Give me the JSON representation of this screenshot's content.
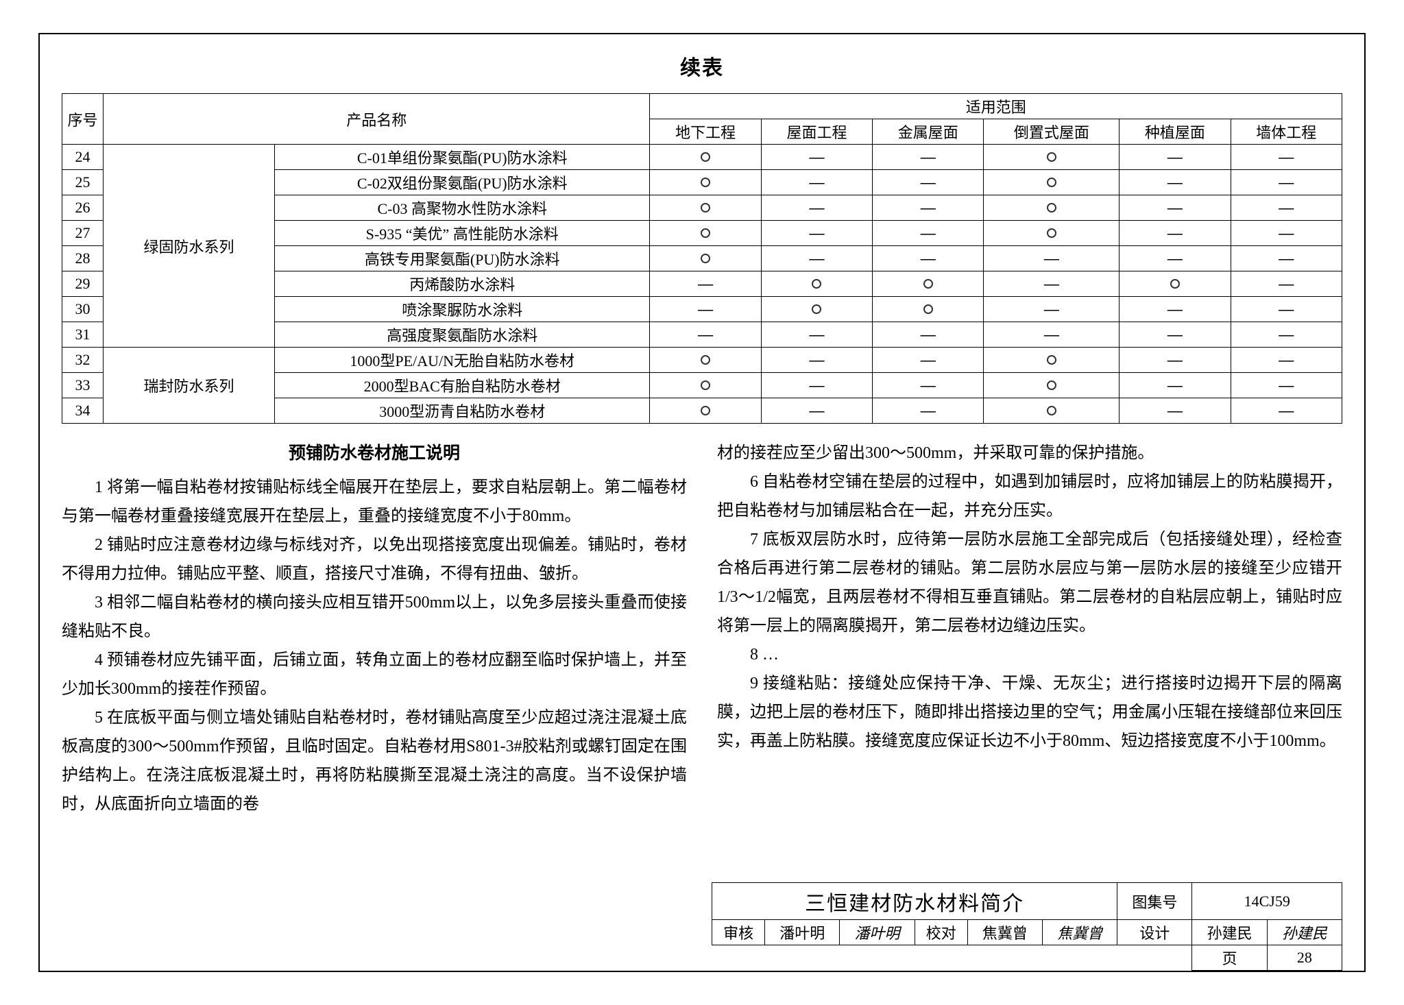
{
  "continued_label": "续表",
  "headers": {
    "num": "序号",
    "product_name": "产品名称",
    "scope": "适用范围",
    "cols": [
      "地下工程",
      "屋面工程",
      "金属屋面",
      "倒置式屋面",
      "种植屋面",
      "墙体工程"
    ]
  },
  "series_labels": {
    "lvgu": "绿固防水系列",
    "ruifeng": "瑞封防水系列"
  },
  "rows": [
    {
      "n": "24",
      "name": "C-01单组份聚氨酯(PU)防水涂料",
      "marks": [
        "o",
        "-",
        "-",
        "o",
        "-",
        "-"
      ]
    },
    {
      "n": "25",
      "name": "C-02双组份聚氨酯(PU)防水涂料",
      "marks": [
        "o",
        "-",
        "-",
        "o",
        "-",
        "-"
      ]
    },
    {
      "n": "26",
      "name": "C-03 高聚物水性防水涂料",
      "marks": [
        "o",
        "-",
        "-",
        "o",
        "-",
        "-"
      ]
    },
    {
      "n": "27",
      "name": "S-935 “美优” 高性能防水涂料",
      "marks": [
        "o",
        "-",
        "-",
        "o",
        "-",
        "-"
      ]
    },
    {
      "n": "28",
      "name": "高铁专用聚氨酯(PU)防水涂料",
      "marks": [
        "o",
        "-",
        "-",
        "-",
        "-",
        "-"
      ]
    },
    {
      "n": "29",
      "name": "丙烯酸防水涂料",
      "marks": [
        "-",
        "o",
        "o",
        "-",
        "o",
        "-"
      ]
    },
    {
      "n": "30",
      "name": "喷涂聚脲防水涂料",
      "marks": [
        "-",
        "o",
        "o",
        "-",
        "-",
        "-"
      ]
    },
    {
      "n": "31",
      "name": "高强度聚氨酯防水涂料",
      "marks": [
        "-",
        "-",
        "-",
        "-",
        "-",
        "-"
      ]
    },
    {
      "n": "32",
      "name": "1000型PE/AU/N无胎自粘防水卷材",
      "marks": [
        "o",
        "-",
        "-",
        "o",
        "-",
        "-"
      ]
    },
    {
      "n": "33",
      "name": "2000型BAC有胎自粘防水卷材",
      "marks": [
        "o",
        "-",
        "-",
        "o",
        "-",
        "-"
      ]
    },
    {
      "n": "34",
      "name": "3000型沥青自粘防水卷材",
      "marks": [
        "o",
        "-",
        "-",
        "o",
        "-",
        "-"
      ]
    }
  ],
  "instructions": {
    "heading": "预铺防水卷材施工说明",
    "left": [
      "1 将第一幅自粘卷材按铺贴标线全幅展开在垫层上，要求自粘层朝上。第二幅卷材与第一幅卷材重叠接缝宽展开在垫层上，重叠的接缝宽度不小于80mm。",
      "2 铺贴时应注意卷材边缘与标线对齐，以免出现搭接宽度出现偏差。铺贴时，卷材不得用力拉伸。铺贴应平整、顺直，搭接尺寸准确，不得有扭曲、皱折。",
      "3 相邻二幅自粘卷材的横向接头应相互错开500mm以上，以免多层接头重叠而使接缝粘贴不良。",
      "4 预铺卷材应先铺平面，后铺立面，转角立面上的卷材应翻至临时保护墙上，并至少加长300mm的接茬作预留。",
      "5 在底板平面与侧立墙处铺贴自粘卷材时，卷材铺贴高度至少应超过浇注混凝土底板高度的300～500mm作预留，且临时固定。自粘卷材用S801-3#胶粘剂或螺钉固定在围护结构上。在浇注底板混凝土时，再将防粘膜撕至混凝土浇注的高度。当不设保护墙时，从底面折向立墙面的卷"
    ],
    "right": [
      "材的接茬应至少留出300～500mm，并采取可靠的保护措施。",
      "6 自粘卷材空铺在垫层的过程中，如遇到加铺层时，应将加铺层上的防粘膜揭开，把自粘卷材与加铺层粘合在一起，并充分压实。",
      "7 底板双层防水时，应待第一层防水层施工全部完成后（包括接缝处理），经检查合格后再进行第二层卷材的铺贴。第二层防水层应与第一层防水层的接缝至少应错开1/3～1/2幅宽，且两层卷材不得相互垂直铺贴。第二层卷材的自粘层应朝上，铺贴时应将第一层上的隔离膜揭开，第二层卷材边缝边压实。",
      "8 …",
      "9 接缝粘贴：接缝处应保持干净、干燥、无灰尘；进行搭接时边揭开下层的隔离膜，边把上层的卷材压下，随即排出搭接边里的空气；用金属小压辊在接缝部位来回压实，再盖上防粘膜。接缝宽度应保证长边不小于80mm、短边搭接宽度不小于100mm。"
    ]
  },
  "title_block": {
    "main_title": "三恒建材防水材料简介",
    "atlas_label": "图集号",
    "atlas_no": "14CJ59",
    "review_label": "审核",
    "review_name": "潘叶明",
    "review_sig": "潘叶明",
    "check_label": "校对",
    "check_name": "焦冀曾",
    "check_sig": "焦冀曾",
    "design_label": "设计",
    "design_name": "孙建民",
    "design_sig": "孙建民",
    "page_label": "页",
    "page_no": "28"
  }
}
